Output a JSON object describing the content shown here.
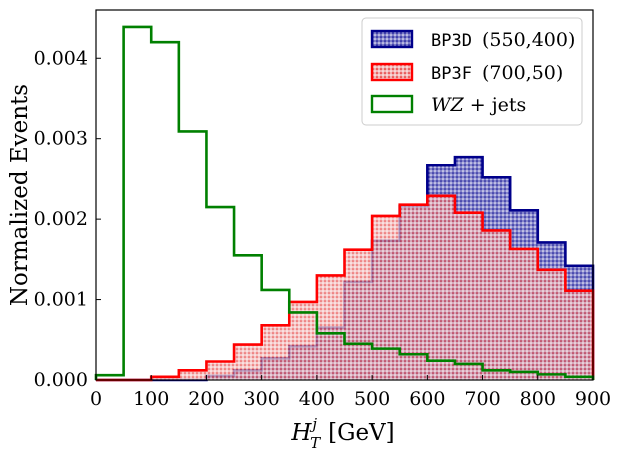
{
  "chart_data": {
    "type": "histogram-step",
    "title": "",
    "xlabel_base": "H",
    "xlabel_sup": "j",
    "xlabel_sub": "T",
    "xlabel_unit": "[GeV]",
    "ylabel": "Normalized Events",
    "xlim": [
      0,
      900
    ],
    "ylim": [
      0,
      0.0046
    ],
    "xticks": [
      0,
      100,
      200,
      300,
      400,
      500,
      600,
      700,
      800,
      900
    ],
    "xtick_labels": [
      "0",
      "100",
      "200",
      "300",
      "400",
      "500",
      "600",
      "700",
      "800",
      "900"
    ],
    "yticks": [
      0,
      0.001,
      0.002,
      0.003,
      0.004
    ],
    "ytick_labels": [
      "0.000",
      "0.001",
      "0.002",
      "0.003",
      "0.004"
    ],
    "bin_edges": [
      0,
      50,
      100,
      150,
      200,
      250,
      300,
      350,
      400,
      450,
      500,
      550,
      600,
      650,
      700,
      750,
      800,
      850,
      900
    ],
    "legend_position": "top-right",
    "series": [
      {
        "name": "BP3D",
        "code": "BP3D",
        "params": "(550,400)",
        "color": "#00008b",
        "fill": "#8a8ad0",
        "hatched": true,
        "values": [
          0,
          0,
          0,
          0,
          5e-05,
          0.00012,
          0.00027,
          0.00042,
          0.00065,
          0.00122,
          0.00173,
          0.00216,
          0.00267,
          0.00277,
          0.00252,
          0.00211,
          0.00171,
          0.00142
        ]
      },
      {
        "name": "BP3F",
        "code": "BP3F",
        "params": "(700,50)",
        "color": "#ff0000",
        "fill": "#f4a0a0",
        "hatched": true,
        "values": [
          0,
          0,
          4e-05,
          0.00012,
          0.00023,
          0.00044,
          0.00068,
          0.00097,
          0.0013,
          0.00162,
          0.00204,
          0.00218,
          0.00229,
          0.00208,
          0.00186,
          0.00163,
          0.00137,
          0.00111
        ]
      },
      {
        "name": "WZ + jets",
        "label_main": "WZ",
        "label_rest": " + jets",
        "color": "#008000",
        "fill": "none",
        "hatched": false,
        "values": [
          6e-05,
          0.00439,
          0.0042,
          0.00309,
          0.00215,
          0.00155,
          0.00112,
          0.00084,
          0.00058,
          0.00045,
          0.00039,
          0.00032,
          0.00024,
          0.0002,
          0.00012,
          0.0001,
          7e-05,
          4e-05
        ]
      }
    ]
  }
}
